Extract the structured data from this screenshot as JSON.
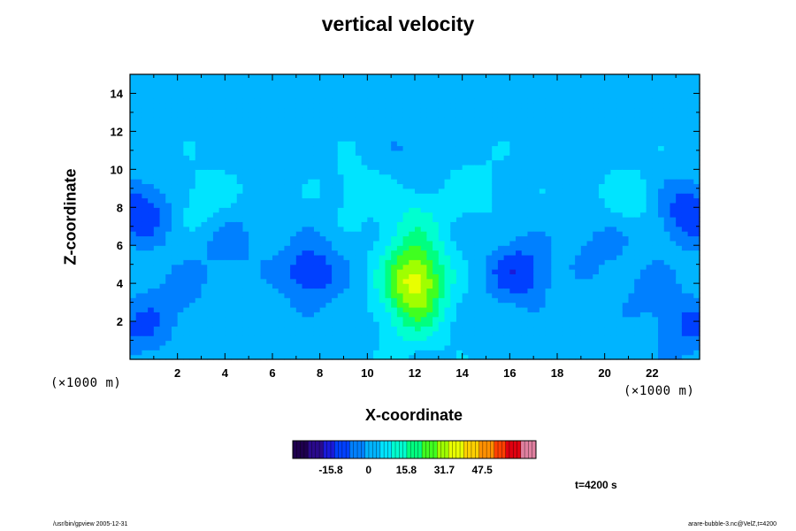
{
  "header": {
    "title": "vertical velocity"
  },
  "axes": {
    "xlabel": "X-coordinate",
    "ylabel": "Z-coordinate",
    "x_unit_left": "(×1000 m)",
    "x_unit_right": "(×1000 m)"
  },
  "colorbar": {
    "tick_labels": [
      "-15.8",
      "0",
      "15.8",
      "31.7",
      "47.5"
    ],
    "tick_values": [
      -15.8,
      0,
      15.8,
      31.7,
      47.5
    ],
    "range": [
      -31.7,
      70
    ],
    "colors": [
      "#1e004d",
      "#2a0a8c",
      "#1a1ad9",
      "#0040ff",
      "#0080ff",
      "#00b4ff",
      "#00e4ff",
      "#00ffd0",
      "#00ff80",
      "#40ff20",
      "#a0ff00",
      "#e8ff00",
      "#ffd000",
      "#ff9000",
      "#ff4000",
      "#e00010",
      "#e080a0"
    ]
  },
  "annotations": {
    "time": "t=4200 s",
    "footer_left": "/usr/bin/gpview 2005-12-31",
    "footer_right": "arare-bubble-3.nc@VelZ,t=4200"
  },
  "chart_data": {
    "type": "heatmap",
    "title": "vertical velocity",
    "xlabel": "X-coordinate",
    "ylabel": "Z-coordinate",
    "x_unit": "(×1000 m)",
    "z_unit": "(×1000 m)",
    "xlim": [
      0,
      24
    ],
    "ylim": [
      0,
      15
    ],
    "x_ticks": [
      2,
      4,
      6,
      8,
      10,
      12,
      14,
      16,
      18,
      20,
      22
    ],
    "y_ticks": [
      2,
      4,
      6,
      8,
      10,
      12,
      14
    ],
    "grid": false,
    "value_range": [
      -31.7,
      70
    ],
    "background_value": 2,
    "features": [
      {
        "x": 12,
        "z": 3.8,
        "value": 25
      },
      {
        "x": 12,
        "z": 5.2,
        "value": 15
      },
      {
        "x": 12,
        "z": 2.0,
        "value": 10
      },
      {
        "x": 12,
        "z": 7.5,
        "value": 8
      },
      {
        "x": 7.6,
        "z": 4.6,
        "value": -15
      },
      {
        "x": 16.4,
        "z": 4.6,
        "value": -15
      },
      {
        "x": 0.4,
        "z": 7.8,
        "value": -15
      },
      {
        "x": 23.6,
        "z": 7.8,
        "value": -15
      },
      {
        "x": 0.4,
        "z": 1.6,
        "value": -10
      },
      {
        "x": 23.6,
        "z": 1.6,
        "value": -10
      },
      {
        "x": 4.2,
        "z": 6.0,
        "value": -6
      },
      {
        "x": 19.8,
        "z": 6.0,
        "value": -6
      },
      {
        "x": 2.0,
        "z": 3.5,
        "value": -6
      },
      {
        "x": 22.0,
        "z": 3.5,
        "value": -6
      },
      {
        "x": 9.5,
        "z": 9.0,
        "value": 5
      },
      {
        "x": 14.5,
        "z": 9.0,
        "value": 5
      },
      {
        "x": 12,
        "z": 11.0,
        "value": -4
      },
      {
        "x": 3.0,
        "z": 8.5,
        "value": 6
      },
      {
        "x": 21.0,
        "z": 8.5,
        "value": 6
      }
    ],
    "annotation": "t=4200 s"
  }
}
